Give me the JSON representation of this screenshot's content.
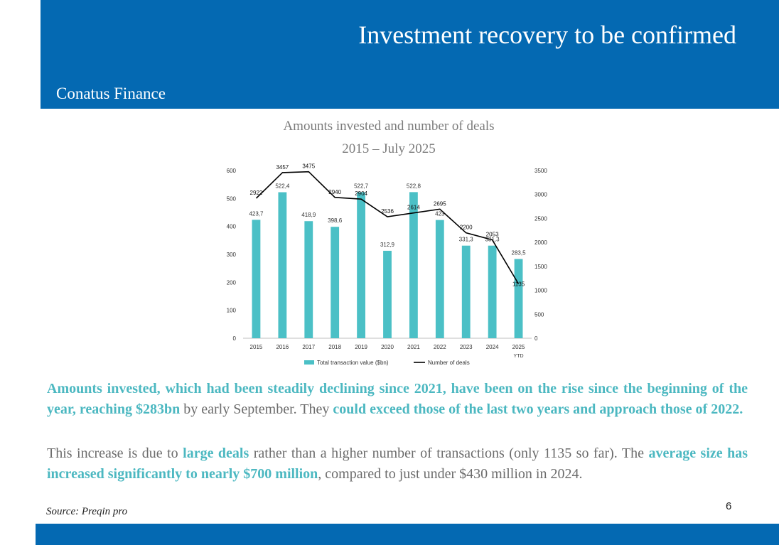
{
  "slide": {
    "title": "Investment recovery to be confirmed",
    "company": "Conatus Finance",
    "page_number": "6",
    "source": "Source: Preqin pro",
    "colors": {
      "brand_blue": "#0469b2",
      "bar": "#4bc0c6",
      "highlight": "#4cb8c1",
      "line": "#000000"
    }
  },
  "chart_title": {
    "line1": "Amounts invested and number of deals",
    "line2": "2015 – July 2025"
  },
  "chart_data": {
    "type": "bar",
    "categories": [
      "2015",
      "2016",
      "2017",
      "2018",
      "2019",
      "2020",
      "2021",
      "2022",
      "2023",
      "2024",
      "2025"
    ],
    "category_sublabels": [
      "",
      "",
      "",
      "",
      "",
      "",
      "",
      "",
      "",
      "",
      "YTD"
    ],
    "series": [
      {
        "name": "Total transaction value ($bn)",
        "type": "bar",
        "axis": "left",
        "values": [
          423.7,
          522.4,
          418.9,
          398.6,
          522.7,
          312.9,
          522.8,
          423,
          331.3,
          331.3,
          283.5
        ],
        "labels": [
          "423,7",
          "522,4",
          "418,9",
          "398,6",
          "522,7",
          "312,9",
          "522,8",
          "423",
          "331,3",
          "331,3",
          "283,5"
        ]
      },
      {
        "name": "Number of deals",
        "type": "line",
        "axis": "right",
        "values": [
          2922,
          3457,
          3475,
          2940,
          2904,
          2536,
          2614,
          2695,
          2200,
          2053,
          1135
        ],
        "labels": [
          "2922",
          "3457",
          "3475",
          "2940",
          "2904",
          "2536",
          "2614",
          "2695",
          "2200",
          "2053",
          "1135"
        ]
      }
    ],
    "y_left": {
      "min": 0,
      "max": 600,
      "ticks": [
        "0",
        "100",
        "200",
        "300",
        "400",
        "500",
        "600"
      ]
    },
    "y_right": {
      "min": 0,
      "max": 3500,
      "ticks": [
        "0",
        "500",
        "1000",
        "1500",
        "2000",
        "2500",
        "3000",
        "3500"
      ]
    },
    "grid": false,
    "legend_position": "bottom"
  },
  "paragraph1": [
    {
      "text": "Amounts invested, which had been steadily declining since 2021, have been on the rise since the beginning of the year, reaching $283bn",
      "bold": true
    },
    {
      "text": " by early September. They ",
      "bold": false
    },
    {
      "text": "could exceed those of the last two years and approach those of 2022.",
      "bold": true
    }
  ],
  "paragraph2": [
    {
      "text": "This increase is due to ",
      "bold": false
    },
    {
      "text": "large deals",
      "bold": true
    },
    {
      "text": " rather than a higher number of transactions (only 1135 so far). The ",
      "bold": false
    },
    {
      "text": "average size has increased significantly to nearly $700 million",
      "bold": true
    },
    {
      "text": ", compared to just under $430 million in 2024.",
      "bold": false
    }
  ]
}
